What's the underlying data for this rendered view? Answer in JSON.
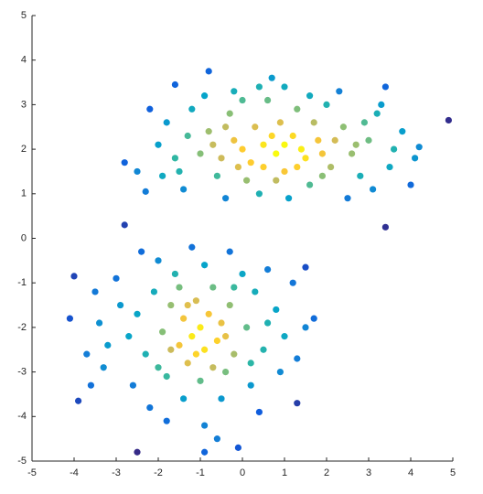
{
  "chart_data": {
    "type": "scatter",
    "x": [
      4.9,
      3.4,
      3.4,
      -0.8,
      -1.6,
      -2.8,
      -2.5,
      -2.3,
      -2.8,
      -4,
      -4.1,
      -3.9,
      -2.5,
      -0.9,
      -0.1,
      1.7,
      1.3,
      1.5,
      0.7,
      4.2,
      4.1,
      0.5,
      0.8,
      1.2,
      1.5,
      0.2,
      -0.2,
      0.9,
      1.8,
      2.1,
      1.0,
      0.3,
      -0.5,
      -0.8,
      2.4,
      2.6,
      1.3,
      0.6,
      -0.3,
      -1.0,
      -1.3,
      3.0,
      2.8,
      1.6,
      0.1,
      -0.6,
      -1.6,
      -1.8,
      -1.2,
      0.0,
      2.0,
      3.2,
      3.5,
      3.8,
      2.5,
      1.1,
      -0.4,
      -1.4,
      -2.0,
      -2.2,
      0.4,
      1.9,
      0.7,
      1.4,
      0.0,
      -0.4,
      2.2,
      1.0,
      0.5,
      1.7,
      2.9,
      -0.9,
      1.0,
      2.3,
      3.6,
      4.0,
      3.1,
      -1.5,
      -0.1,
      1.3,
      0.4,
      -0.2,
      1.6,
      2.7,
      0.8,
      1.9,
      -0.7,
      -1.9,
      3.3,
      -1,
      -0.8,
      -1.2,
      -0.6,
      -1.4,
      -0.9,
      -1.1,
      -0.5,
      -1.5,
      -0.3,
      -1.7,
      -0.7,
      -1.3,
      -0.2,
      -1.9,
      -0.4,
      -2.1,
      -1.0,
      0.1,
      -2.3,
      0.3,
      -1.6,
      -0.9,
      0.5,
      -2.5,
      -1.8,
      0.2,
      -2.7,
      0.8,
      -0.5,
      -1.4,
      -2.0,
      -0.3,
      1.0,
      0.6,
      -2.9,
      -2.6,
      -3.2,
      -1.2,
      0.9,
      -3.0,
      -3.4,
      1.2,
      0.4,
      -0.9,
      -1.8,
      -3.3,
      1.3,
      -2.2,
      -0.6,
      -3.5,
      -2.4,
      0.0,
      -1.5,
      -0.2,
      0.2,
      -2.0,
      -1.7,
      -0.7,
      0.6,
      1.5,
      -3.7,
      -3.6,
      -1.1,
      -0.4,
      -1.3
    ],
    "y": [
      2.65,
      3.4,
      0.25,
      3.75,
      3.45,
      1.7,
      1.5,
      1.05,
      0.3,
      -0.85,
      -1.8,
      -3.65,
      -4.8,
      -4.8,
      -4.7,
      -1.8,
      -3.7,
      -0.65,
      3.6,
      2.05,
      1.8,
      2.1,
      1.9,
      2.3,
      1.8,
      1.7,
      2.2,
      2.6,
      2.2,
      1.6,
      1.5,
      2.5,
      1.8,
      2.4,
      2.5,
      1.9,
      2.9,
      3.1,
      2.8,
      1.9,
      2.3,
      2.2,
      1.4,
      1.2,
      1.3,
      1.4,
      1.8,
      2.6,
      2.9,
      3.1,
      3.0,
      2.8,
      1.6,
      2.4,
      0.9,
      0.9,
      0.9,
      1.1,
      2.1,
      2.9,
      1.0,
      1.9,
      2.3,
      2.0,
      2.0,
      2.5,
      2.2,
      2.1,
      1.6,
      2.6,
      2.6,
      3.2,
      3.4,
      3.3,
      2.0,
      1.2,
      1.1,
      1.5,
      1.6,
      1.6,
      3.4,
      3.3,
      3.2,
      2.1,
      1.3,
      1.4,
      2.1,
      1.4,
      3.0,
      -2,
      -1.7,
      -2.2,
      -2.3,
      -1.8,
      -2.5,
      -1.4,
      -1.9,
      -2.4,
      -1.5,
      -1.5,
      -1.1,
      -2.8,
      -2.6,
      -2.1,
      -3.0,
      -1.2,
      -3.2,
      -2.0,
      -2.6,
      -1.2,
      -0.8,
      -0.6,
      -2.5,
      -1.7,
      -3.1,
      -3.3,
      -2.2,
      -1.6,
      -3.6,
      -3.6,
      -0.5,
      -0.3,
      -2.2,
      -0.7,
      -1.5,
      -3.3,
      -2.4,
      -0.2,
      -3.0,
      -0.9,
      -1.9,
      -1.0,
      -3.9,
      -4.2,
      -4.1,
      -2.9,
      -2.7,
      -3.8,
      -4.5,
      -1.2,
      -0.3,
      -0.8,
      -1.1,
      -1.1,
      -2.8,
      -2.9,
      -2.5,
      -2.9,
      -1.9,
      -2.0,
      -2.6,
      -3.3,
      -2.6,
      -2.2,
      -1.5
    ],
    "colormap": [
      "#352a87",
      "#0f5cdd",
      "#1481d6",
      "#06a4ca",
      "#2eb7a4",
      "#87bf77",
      "#d1bb59",
      "#fec832",
      "#f9fb0e"
    ],
    "xlim": [
      -5,
      5
    ],
    "ylim": [
      -5,
      5
    ],
    "xticks": [
      -5,
      -4,
      -3,
      -2,
      -1,
      0,
      1,
      2,
      3,
      4,
      5
    ],
    "yticks": [
      -5,
      -4,
      -3,
      -2,
      -1,
      0,
      1,
      2,
      3,
      4,
      5
    ]
  }
}
